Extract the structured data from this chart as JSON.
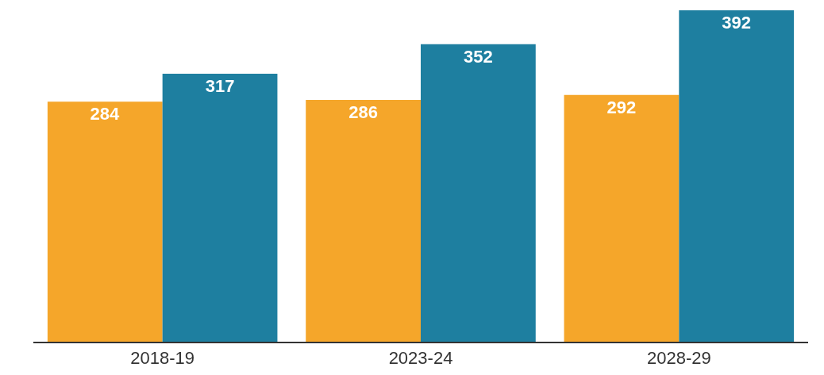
{
  "chart_data": {
    "type": "bar",
    "categories": [
      "2018-19",
      "2023-24",
      "2028-29"
    ],
    "series": [
      {
        "color": "#f5a62a",
        "values": [
          284,
          286,
          292
        ]
      },
      {
        "color": "#1e7fa0",
        "values": [
          317,
          352,
          392
        ]
      }
    ],
    "data_labels": true,
    "legend": false,
    "grid": false,
    "tick_labels": "x"
  }
}
